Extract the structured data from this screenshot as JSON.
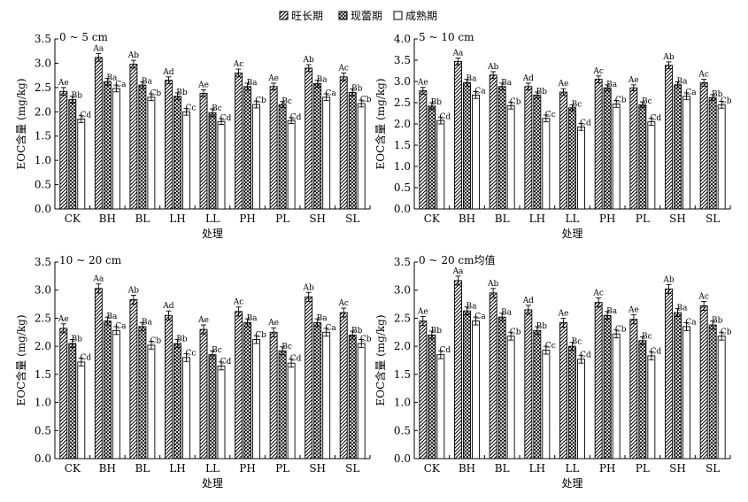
{
  "legend": {
    "position": "top-center",
    "items": [
      {
        "name": "旺长期",
        "pattern": "diagonal"
      },
      {
        "name": "现蕾期",
        "pattern": "crosshatch"
      },
      {
        "name": "成熟期",
        "pattern": "empty"
      }
    ]
  },
  "chart_data": [
    {
      "type": "bar",
      "title": "0 ~ 5 cm",
      "xlabel": "处理",
      "ylabel": "EOC含量 (mg/kg)",
      "ylim": [
        0,
        3.5
      ],
      "yticks": [
        "0.0",
        "0.5",
        "1.0",
        "1.5",
        "2.0",
        "2.5",
        "3.0",
        "3.5"
      ],
      "categories": [
        "CK",
        "BH",
        "BL",
        "LH",
        "LL",
        "PH",
        "PL",
        "SH",
        "SL"
      ],
      "series": [
        {
          "name": "旺长期",
          "values": [
            2.42,
            3.12,
            2.98,
            2.65,
            2.38,
            2.8,
            2.52,
            2.9,
            2.72
          ],
          "errors": [
            0.08,
            0.08,
            0.08,
            0.07,
            0.07,
            0.08,
            0.07,
            0.07,
            0.08
          ],
          "labels": [
            "Ae",
            "Aa",
            "Ab",
            "Ad",
            "Ae",
            "Ac",
            "Ae",
            "Ab",
            "Ac"
          ]
        },
        {
          "name": "现蕾期",
          "values": [
            2.25,
            2.62,
            2.55,
            2.32,
            1.98,
            2.52,
            2.15,
            2.58,
            2.4
          ],
          "errors": [
            0.07,
            0.07,
            0.07,
            0.07,
            0.08,
            0.07,
            0.06,
            0.07,
            0.07
          ],
          "labels": [
            "Bb",
            "Ba",
            "Ba",
            "Bb",
            "Bc",
            "Ba",
            "Bc",
            "Ba",
            "Bb"
          ]
        },
        {
          "name": "成熟期",
          "values": [
            1.85,
            2.48,
            2.3,
            2.0,
            1.8,
            2.15,
            1.82,
            2.3,
            2.17
          ],
          "errors": [
            0.07,
            0.07,
            0.07,
            0.07,
            0.06,
            0.07,
            0.06,
            0.07,
            0.07
          ],
          "labels": [
            "Cd",
            "Ca",
            "Cb",
            "Cc",
            "Cd",
            "Cb",
            "Cd",
            "Ca",
            "Cb"
          ]
        }
      ]
    },
    {
      "type": "bar",
      "title": "5 ~ 10 cm",
      "xlabel": "处理",
      "ylabel": "EOC含量 (mg/kg)",
      "ylim": [
        0,
        4.0
      ],
      "yticks": [
        "0.0",
        "0.5",
        "1.0",
        "1.5",
        "2.0",
        "2.5",
        "3.0",
        "3.5",
        "4.0"
      ],
      "categories": [
        "CK",
        "BH",
        "BL",
        "LH",
        "LL",
        "PH",
        "PL",
        "SH",
        "SL"
      ],
      "series": [
        {
          "name": "旺长期",
          "values": [
            2.78,
            3.47,
            3.15,
            2.88,
            2.75,
            3.05,
            2.85,
            3.38,
            2.97
          ],
          "errors": [
            0.08,
            0.08,
            0.08,
            0.08,
            0.08,
            0.08,
            0.07,
            0.08,
            0.08
          ],
          "labels": [
            "Ae",
            "Aa",
            "Ab",
            "Ad",
            "Ae",
            "Ac",
            "Ae",
            "Ab",
            "Ac"
          ]
        },
        {
          "name": "现蕾期",
          "values": [
            2.42,
            2.97,
            2.88,
            2.68,
            2.38,
            2.85,
            2.45,
            2.92,
            2.62
          ],
          "errors": [
            0.08,
            0.08,
            0.08,
            0.07,
            0.07,
            0.07,
            0.07,
            0.07,
            0.07
          ],
          "labels": [
            "Bb",
            "Ba",
            "Ba",
            "Bb",
            "Bc",
            "Ba",
            "Bc",
            "Ba",
            "Bb"
          ]
        },
        {
          "name": "成熟期",
          "values": [
            2.08,
            2.68,
            2.43,
            2.13,
            1.93,
            2.47,
            2.05,
            2.65,
            2.45
          ],
          "errors": [
            0.08,
            0.08,
            0.08,
            0.08,
            0.08,
            0.08,
            0.08,
            0.08,
            0.08
          ],
          "labels": [
            "Cd",
            "Ca",
            "Cb",
            "Cc",
            "Cd",
            "Cb",
            "Cd",
            "Ca",
            "Cb"
          ]
        }
      ]
    },
    {
      "type": "bar",
      "title": "10 ~ 20 cm",
      "xlabel": "处理",
      "ylabel": "EOC含量 (mg/kg)",
      "ylim": [
        0,
        3.5
      ],
      "yticks": [
        "0.0",
        "0.5",
        "1.0",
        "1.5",
        "2.0",
        "2.5",
        "3.0",
        "3.5"
      ],
      "categories": [
        "CK",
        "BH",
        "BL",
        "LH",
        "LL",
        "PH",
        "PL",
        "SH",
        "SL"
      ],
      "series": [
        {
          "name": "旺长期",
          "values": [
            2.32,
            3.03,
            2.83,
            2.55,
            2.3,
            2.62,
            2.25,
            2.88,
            2.6
          ],
          "errors": [
            0.08,
            0.08,
            0.08,
            0.08,
            0.08,
            0.08,
            0.08,
            0.08,
            0.08
          ],
          "labels": [
            "Ae",
            "Aa",
            "Ab",
            "Ad",
            "Ae",
            "Ac",
            "Ae",
            "Ab",
            "Ac"
          ]
        },
        {
          "name": "现蕾期",
          "values": [
            2.05,
            2.45,
            2.35,
            2.05,
            1.85,
            2.42,
            1.92,
            2.42,
            2.2
          ],
          "errors": [
            0.07,
            0.07,
            0.07,
            0.07,
            0.07,
            0.07,
            0.07,
            0.07,
            0.07
          ],
          "labels": [
            "Bb",
            "Ba",
            "Ba",
            "Bb",
            "Bc",
            "Ba",
            "Bc",
            "Ba",
            "Bb"
          ]
        },
        {
          "name": "成熟期",
          "values": [
            1.72,
            2.28,
            2.02,
            1.8,
            1.65,
            2.12,
            1.7,
            2.25,
            2.05
          ],
          "errors": [
            0.07,
            0.07,
            0.07,
            0.07,
            0.07,
            0.07,
            0.07,
            0.07,
            0.07
          ],
          "labels": [
            "Cd",
            "Ca",
            "Cb",
            "Cc",
            "Cd",
            "Cb",
            "Cd",
            "Ca",
            "Cb"
          ]
        }
      ]
    },
    {
      "type": "bar",
      "title": "0 ~ 20 cm均值",
      "xlabel": "处理",
      "ylabel": "EOC含量 (mg/kg)",
      "ylim": [
        0,
        3.5
      ],
      "yticks": [
        "0.0",
        "0.5",
        "1.0",
        "1.5",
        "2.0",
        "2.5",
        "3.0",
        "3.5"
      ],
      "categories": [
        "CK",
        "BH",
        "BL",
        "LH",
        "LL",
        "PH",
        "PL",
        "SH",
        "SL"
      ],
      "series": [
        {
          "name": "旺长期",
          "values": [
            2.45,
            3.17,
            2.95,
            2.65,
            2.42,
            2.78,
            2.48,
            3.02,
            2.72
          ],
          "errors": [
            0.08,
            0.08,
            0.08,
            0.08,
            0.08,
            0.08,
            0.08,
            0.08,
            0.08
          ],
          "labels": [
            "Ae",
            "Aa",
            "Ab",
            "Ad",
            "Ae",
            "Ac",
            "Ae",
            "Ab",
            "Ac"
          ]
        },
        {
          "name": "现蕾期",
          "values": [
            2.2,
            2.63,
            2.52,
            2.28,
            2.0,
            2.55,
            2.1,
            2.6,
            2.38
          ],
          "errors": [
            0.07,
            0.07,
            0.07,
            0.07,
            0.07,
            0.07,
            0.07,
            0.07,
            0.07
          ],
          "labels": [
            "Bb",
            "Ba",
            "Ba",
            "Bb",
            "Bc",
            "Ba",
            "Bc",
            "Ba",
            "Bb"
          ]
        },
        {
          "name": "成熟期",
          "values": [
            1.85,
            2.45,
            2.18,
            1.93,
            1.77,
            2.22,
            1.83,
            2.35,
            2.18
          ],
          "errors": [
            0.07,
            0.07,
            0.07,
            0.07,
            0.07,
            0.07,
            0.07,
            0.07,
            0.07
          ],
          "labels": [
            "Cd",
            "Ca",
            "Cb",
            "Cc",
            "Cd",
            "Cb",
            "Cd",
            "Ca",
            "Cb"
          ]
        }
      ]
    }
  ]
}
